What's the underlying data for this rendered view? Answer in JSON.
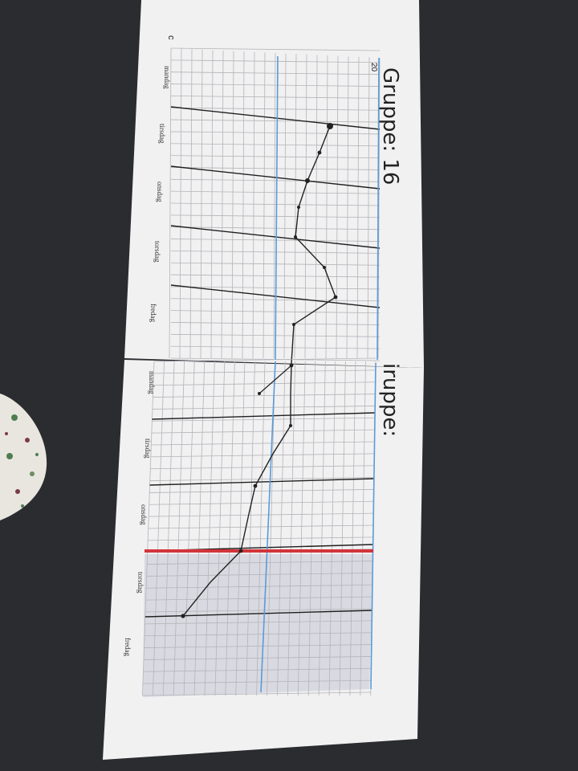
{
  "colors": {
    "table": "#2b2c2f",
    "paper": "#f1f1f2",
    "grid_line": "#b4b4b9",
    "major_line": "#1f1f1f",
    "blue_line": "#5b9bd8",
    "red_line": "#d3343b",
    "shade": "#d9dae1",
    "ink": "#222222"
  },
  "sheet_top": {
    "title": "Gruppe: 16",
    "corner_text": "20",
    "mark": "c",
    "day_labels": [
      "mandag",
      "tirsdag",
      "onsdag",
      "torsdag",
      "fredag"
    ]
  },
  "sheet_bottom": {
    "title": "iruppe:",
    "day_labels": [
      "mandag",
      "tirsdag",
      "onsdag",
      "torsdag",
      "fredag"
    ]
  },
  "icons": {
    "cloth": "patterned-cloth-icon"
  }
}
